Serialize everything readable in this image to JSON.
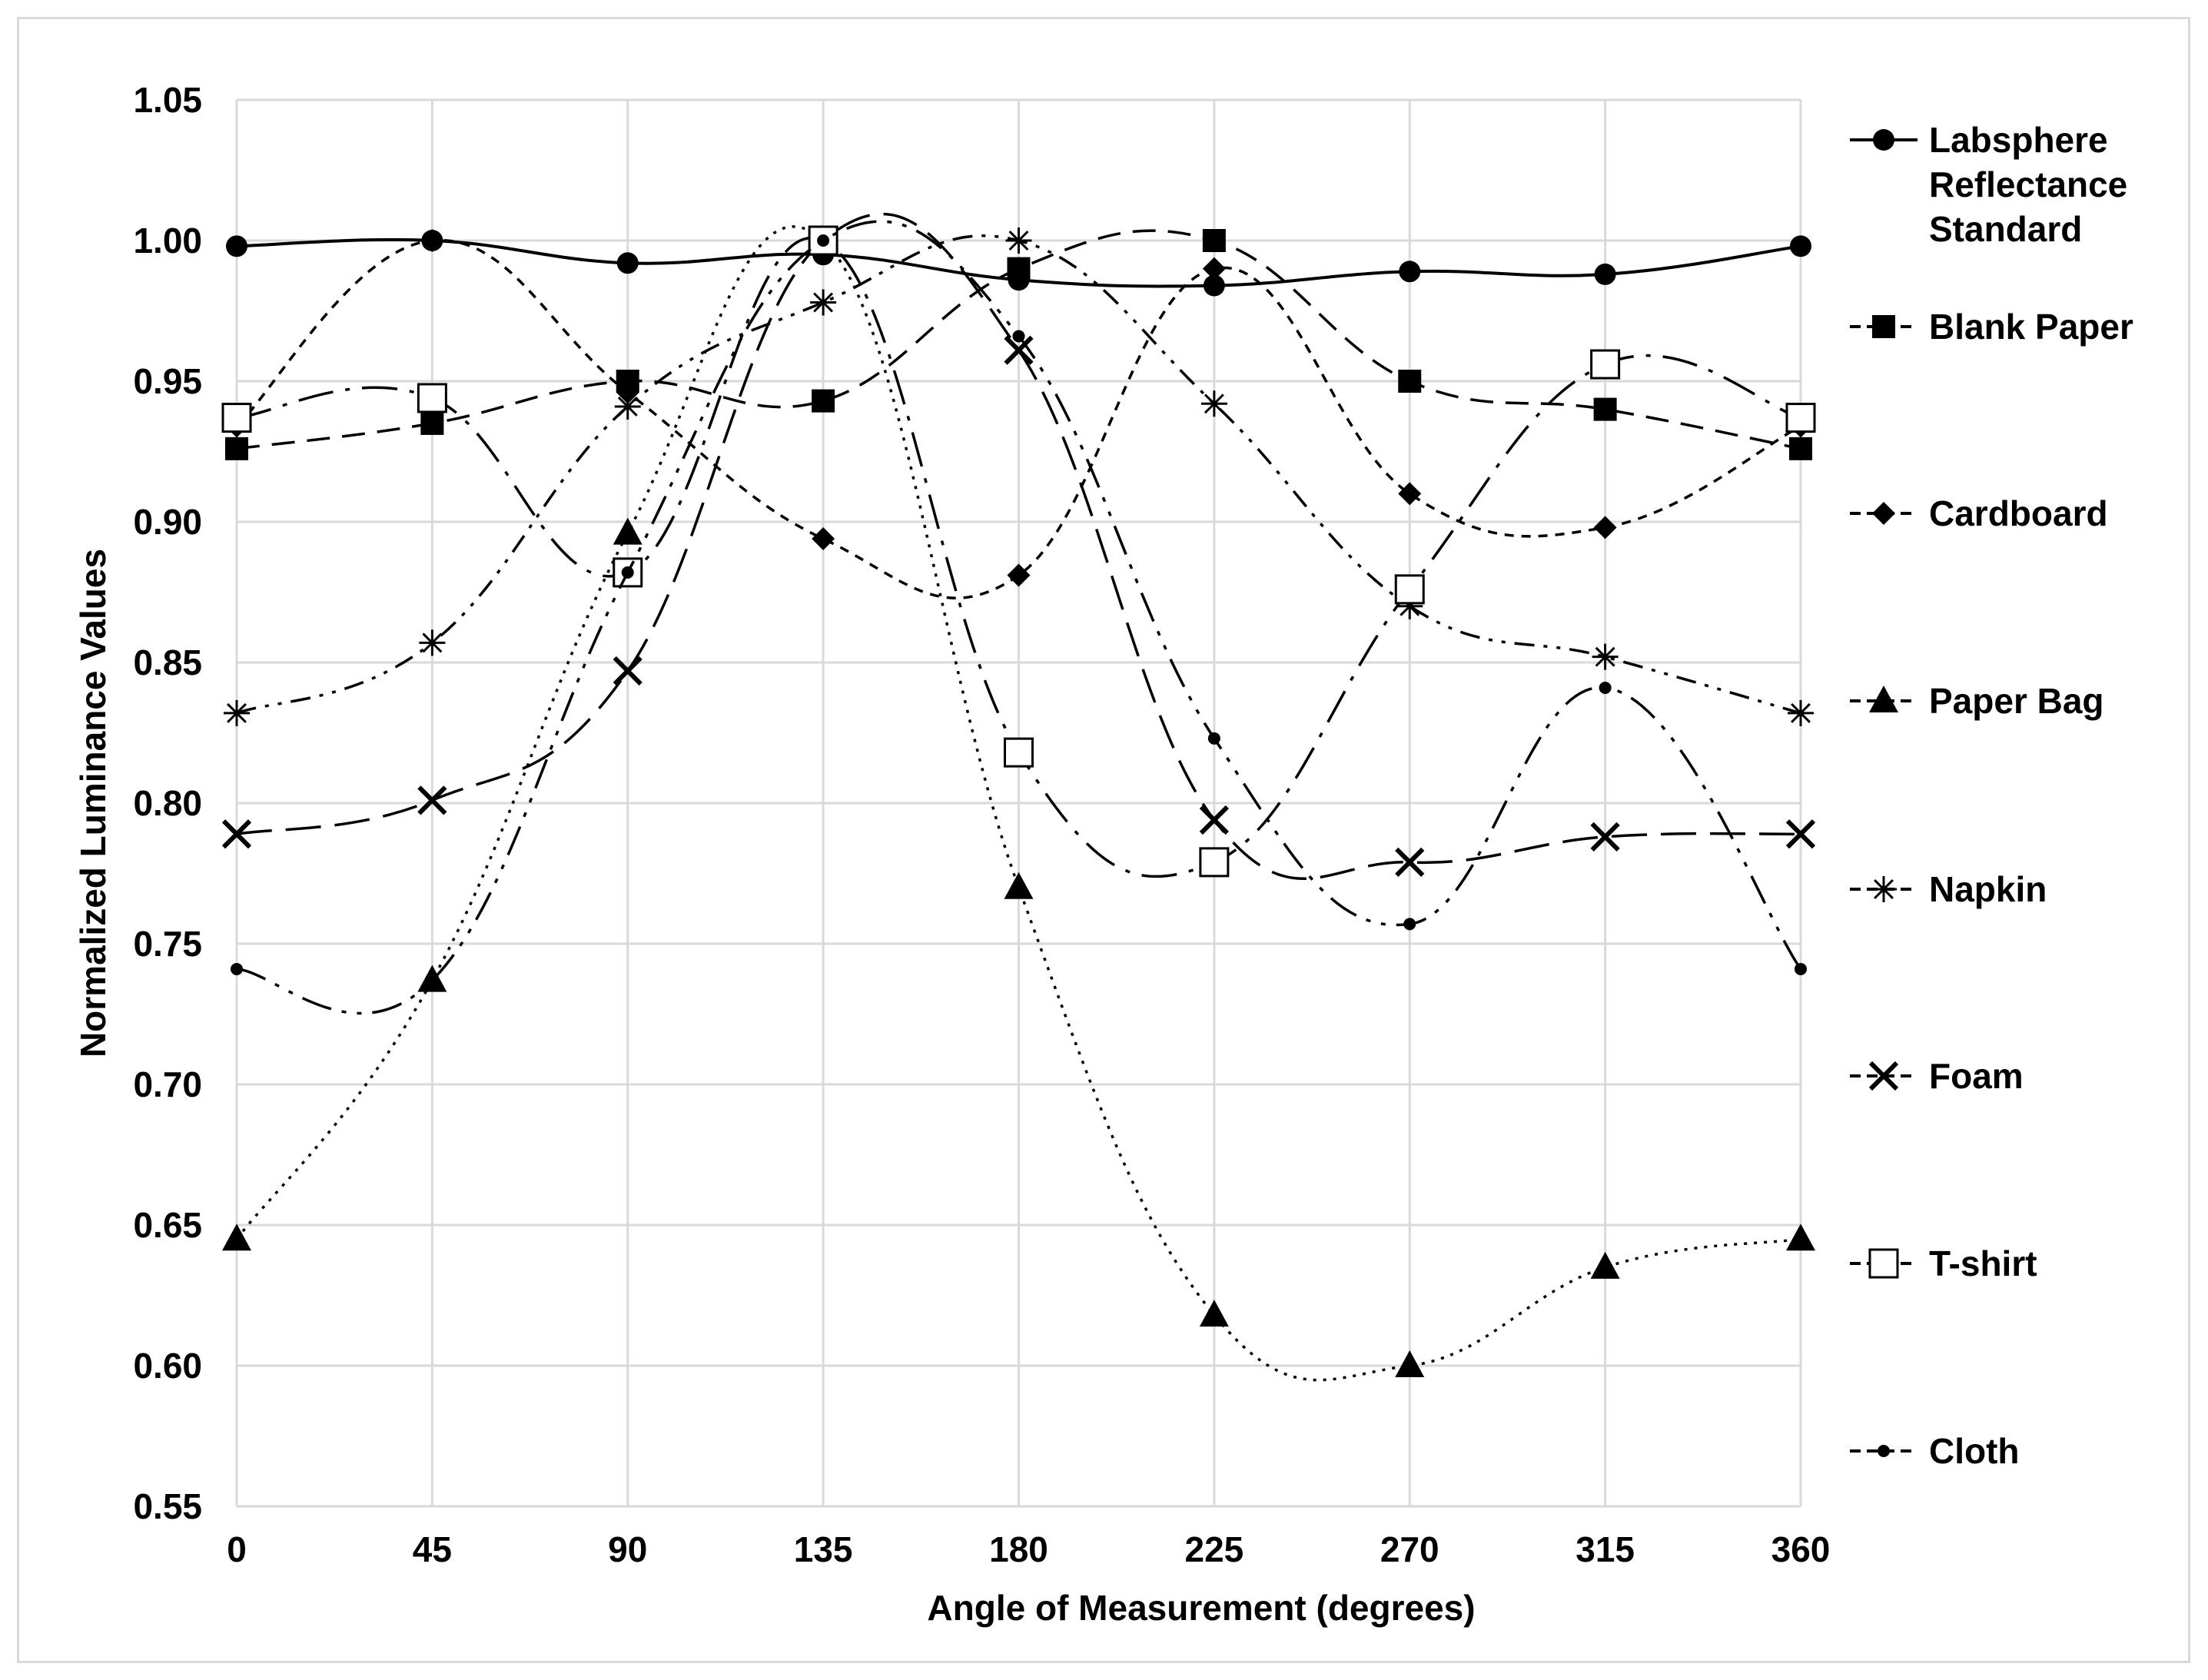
{
  "chart_data": {
    "type": "line",
    "xlabel": "Angle of Measurement (degrees)",
    "ylabel": "Normalized Luminance Values",
    "x": [
      0,
      45,
      90,
      135,
      180,
      225,
      270,
      315,
      360
    ],
    "xlim": [
      0,
      360
    ],
    "ylim": [
      0.55,
      1.05
    ],
    "xticks": [
      "0",
      "45",
      "90",
      "135",
      "180",
      "225",
      "270",
      "315",
      "360"
    ],
    "yticks": [
      "0.55",
      "0.60",
      "0.65",
      "0.70",
      "0.75",
      "0.80",
      "0.85",
      "0.90",
      "0.95",
      "1.00",
      "1.05"
    ],
    "grid": true,
    "legend_position": "right",
    "series": [
      {
        "name": "Labsphere Reflectance Standard",
        "legend_lines": [
          "Labsphere",
          "Reflectance",
          "Standard"
        ],
        "marker": "circle",
        "dash": "solid",
        "values": [
          0.998,
          1.0,
          0.992,
          0.995,
          0.986,
          0.984,
          0.989,
          0.988,
          0.998
        ]
      },
      {
        "name": "Blank Paper",
        "legend_lines": [
          "Blank Paper"
        ],
        "marker": "square",
        "dash": "dash",
        "values": [
          0.926,
          0.935,
          0.95,
          0.943,
          0.99,
          1.0,
          0.95,
          0.94,
          0.926
        ]
      },
      {
        "name": "Cardboard",
        "legend_lines": [
          "Cardboard"
        ],
        "marker": "diamond",
        "dash": "shortdash",
        "values": [
          0.934,
          1.0,
          0.946,
          0.894,
          0.881,
          0.99,
          0.91,
          0.898,
          0.934
        ]
      },
      {
        "name": "Paper Bag",
        "legend_lines": [
          "Paper Bag"
        ],
        "marker": "triangle",
        "dash": "dot",
        "values": [
          0.645,
          0.737,
          0.896,
          1.0,
          0.77,
          0.618,
          0.6,
          0.635,
          0.645
        ]
      },
      {
        "name": "Napkin",
        "legend_lines": [
          "Napkin"
        ],
        "marker": "star",
        "dash": "dashdotdot",
        "values": [
          0.832,
          0.857,
          0.941,
          0.978,
          1.0,
          0.942,
          0.87,
          0.852,
          0.832
        ]
      },
      {
        "name": "Foam",
        "legend_lines": [
          "Foam"
        ],
        "marker": "x",
        "dash": "longdash",
        "values": [
          0.789,
          0.801,
          0.847,
          1.0,
          0.961,
          0.794,
          0.779,
          0.788,
          0.789
        ]
      },
      {
        "name": "T-shirt",
        "legend_lines": [
          "T-shirt"
        ],
        "marker": "opensquare",
        "dash": "longdashdot",
        "values": [
          0.937,
          0.944,
          0.882,
          1.0,
          0.818,
          0.779,
          0.876,
          0.956,
          0.937
        ]
      },
      {
        "name": "Cloth",
        "legend_lines": [
          "Cloth"
        ],
        "marker": "smallcircle",
        "dash": "longdashdotdot",
        "values": [
          0.741,
          0.737,
          0.882,
          1.0,
          0.966,
          0.823,
          0.757,
          0.841,
          0.741
        ]
      }
    ]
  }
}
